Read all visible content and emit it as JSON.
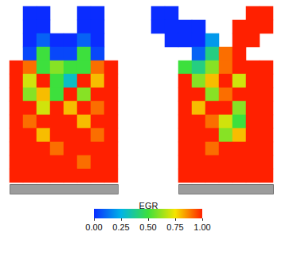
{
  "chart_data": {
    "type": "heatmap",
    "tick_labels": false,
    "panels": [
      {
        "cells": [
          [
            null,
            0,
            0,
            null,
            null,
            0,
            0,
            null
          ],
          [
            null,
            0,
            0,
            null,
            null,
            0,
            0,
            null
          ],
          [
            null,
            0,
            0.1,
            0,
            0,
            0.1,
            0,
            null
          ],
          [
            null,
            0.05,
            0.5,
            0.05,
            0.05,
            0.5,
            0.05,
            null
          ],
          [
            1,
            0.9,
            0.5,
            0.6,
            0.5,
            0.5,
            0.9,
            1
          ],
          [
            1,
            0.7,
            1,
            0.5,
            0.3,
            1,
            0.8,
            1
          ],
          [
            1,
            0.6,
            0.8,
            0.5,
            1,
            0.6,
            1,
            1
          ],
          [
            1,
            1,
            0.7,
            1,
            0.8,
            1,
            0.9,
            1
          ],
          [
            1,
            0.9,
            1,
            1,
            1,
            0.8,
            1,
            1
          ],
          [
            1,
            1,
            0.8,
            1,
            1,
            1,
            0.9,
            1
          ],
          [
            1,
            1,
            1,
            0.9,
            1,
            1,
            1,
            1
          ],
          [
            1,
            1,
            1,
            1,
            1,
            0.9,
            1,
            1
          ],
          [
            1,
            1,
            1,
            1,
            1,
            1,
            1,
            1
          ]
        ]
      },
      {
        "cells": [
          [
            0,
            0,
            null,
            null,
            null,
            null,
            null,
            1,
            1,
            null
          ],
          [
            0,
            0,
            0,
            0,
            null,
            null,
            1,
            1,
            1,
            null
          ],
          [
            null,
            0,
            0,
            0,
            0.2,
            null,
            1,
            1,
            null,
            null
          ],
          [
            null,
            null,
            null,
            0.1,
            0.4,
            0.9,
            1,
            null,
            null,
            null
          ],
          [
            null,
            null,
            0.5,
            0.4,
            0.6,
            0.9,
            1,
            1,
            1,
            null
          ],
          [
            null,
            null,
            1,
            0.6,
            0.8,
            1,
            0.7,
            1,
            1,
            null
          ],
          [
            null,
            null,
            1,
            1,
            0.6,
            0.9,
            1,
            1,
            1,
            null
          ],
          [
            null,
            null,
            1,
            0.8,
            1,
            1,
            0.6,
            1,
            1,
            null
          ],
          [
            null,
            null,
            1,
            1,
            0.9,
            0.7,
            0.5,
            1,
            1,
            null
          ],
          [
            null,
            null,
            1,
            1,
            1,
            0.6,
            0.8,
            1,
            1,
            null
          ],
          [
            null,
            null,
            1,
            1,
            0.9,
            1,
            1,
            1,
            1,
            null
          ],
          [
            null,
            null,
            1,
            1,
            1,
            1,
            1,
            1,
            1,
            null
          ],
          [
            null,
            null,
            1,
            1,
            1,
            1,
            1,
            1,
            1,
            null
          ]
        ]
      }
    ],
    "colorbar": {
      "title": "EGR",
      "range": [
        0,
        1
      ],
      "ticks": [
        {
          "value": 0,
          "label": "0.00"
        },
        {
          "value": 0.25,
          "label": "0.25"
        },
        {
          "value": 0.5,
          "label": "0.50"
        },
        {
          "value": 0.75,
          "label": "0.75"
        },
        {
          "value": 1,
          "label": "1.00"
        }
      ]
    }
  }
}
